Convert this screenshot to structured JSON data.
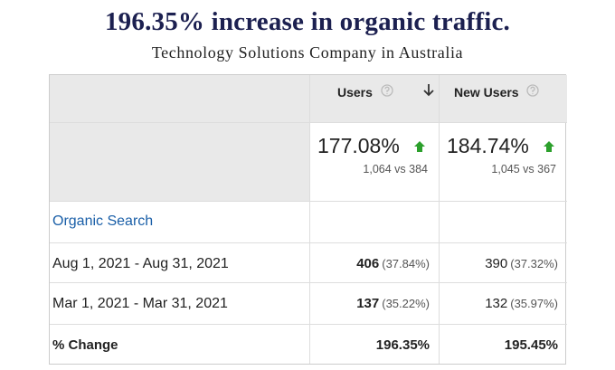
{
  "header": {
    "title": "196.35% increase in organic traffic.",
    "subtitle": "Technology Solutions Company in Australia"
  },
  "table": {
    "columns": [
      "Users",
      "New Users"
    ],
    "summary": [
      {
        "percent": "177.08%",
        "compare": "1,064 vs 384"
      },
      {
        "percent": "184.74%",
        "compare": "1,045 vs 367"
      }
    ],
    "segment": "Organic Search",
    "rows": [
      {
        "label": "Aug 1, 2021 - Aug 31, 2021",
        "cells": [
          {
            "value": "406",
            "share": "(37.84%)"
          },
          {
            "value": "390",
            "share": "(37.32%)"
          }
        ]
      },
      {
        "label": "Mar 1, 2021 - Mar 31, 2021",
        "cells": [
          {
            "value": "137",
            "share": "(35.22%)"
          },
          {
            "value": "132",
            "share": "(35.97%)"
          }
        ]
      }
    ],
    "change": {
      "label": "% Change",
      "values": [
        "196.35%",
        "195.45%"
      ]
    }
  }
}
